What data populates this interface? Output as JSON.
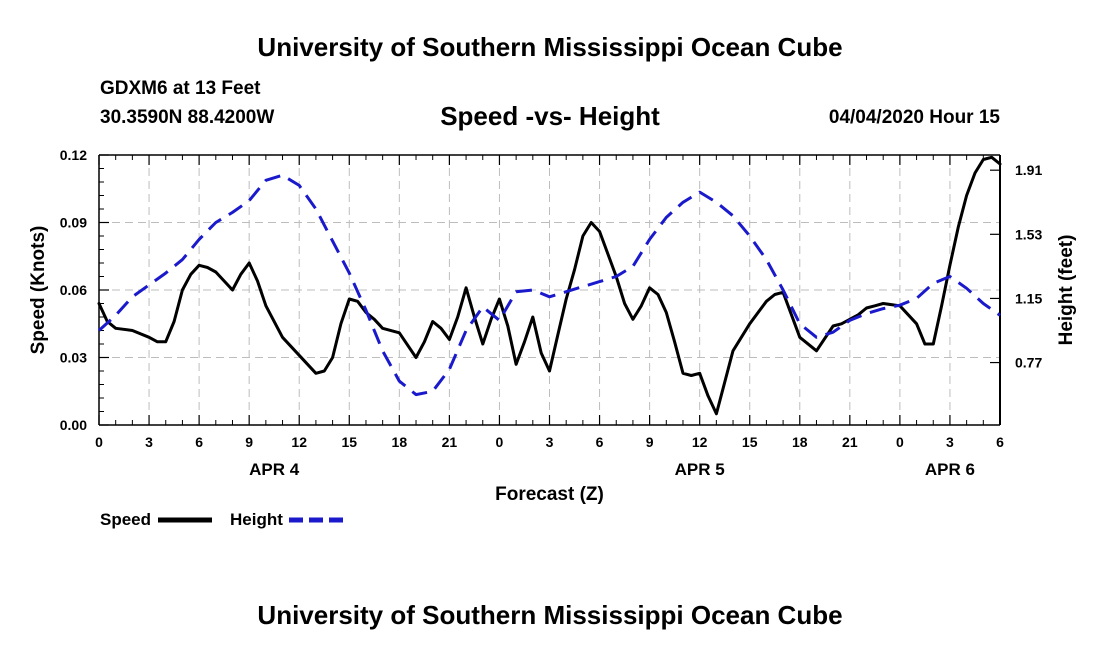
{
  "header": {
    "title": "University of Southern Mississippi Ocean Cube",
    "station": "GDXM6 at 13 Feet",
    "coords": "30.3590N 88.4200W",
    "valid_time": "04/04/2020 Hour 15"
  },
  "footer": {
    "title": "University of Southern Mississippi Ocean Cube"
  },
  "chart_data": {
    "type": "line",
    "title": "Speed -vs- Height",
    "xlabel": "Forecast (Z)",
    "ylabel_left": "Speed (Knots)",
    "ylabel_right": "Height (feet)",
    "x_range_hours": [
      0,
      54
    ],
    "x_ticks": [
      "0",
      "3",
      "6",
      "9",
      "12",
      "15",
      "18",
      "21",
      "0",
      "3",
      "6",
      "9",
      "12",
      "15",
      "18",
      "21",
      "0",
      "3",
      "6"
    ],
    "date_labels": [
      {
        "label": "APR 4",
        "hour": 10.5
      },
      {
        "label": "APR 5",
        "hour": 36
      },
      {
        "label": "APR 6",
        "hour": 51
      }
    ],
    "y_left": {
      "min": 0,
      "max": 0.12,
      "ticks": [
        "0.00",
        "0.03",
        "0.06",
        "0.09",
        "0.12"
      ]
    },
    "y_right": {
      "min": 0.4,
      "max": 2.0,
      "ticks": [
        "0.77",
        "1.15",
        "1.53",
        "1.91"
      ]
    },
    "grid": true,
    "legend": [
      {
        "name": "Speed",
        "color": "#000000",
        "style": "solid"
      },
      {
        "name": "Height",
        "color": "#1a1acc",
        "style": "dashed"
      }
    ],
    "series": [
      {
        "name": "Speed",
        "axis": "left",
        "color": "#000000",
        "x": [
          0,
          0.5,
          1,
          2,
          3,
          3.5,
          4,
          4.5,
          5,
          5.5,
          6,
          6.5,
          7,
          8,
          8.5,
          9,
          9.5,
          10,
          11,
          12,
          13,
          13.5,
          14,
          14.5,
          15,
          15.5,
          16,
          16.5,
          17,
          18,
          19,
          19.5,
          20,
          20.5,
          21,
          21.5,
          22,
          22.5,
          23,
          23.5,
          24,
          24.5,
          25,
          25.5,
          26,
          26.5,
          27,
          27.5,
          28,
          28.5,
          29,
          29.5,
          30,
          30.5,
          31,
          31.5,
          32,
          32.5,
          33,
          33.5,
          34,
          34.5,
          35,
          35.5,
          36,
          36.5,
          37,
          38,
          39,
          40,
          40.5,
          41,
          42,
          43,
          44,
          44.5,
          45,
          45.5,
          46,
          46.5,
          47,
          48,
          49,
          49.5,
          50,
          50.5,
          51,
          51.5,
          52,
          52.5,
          53,
          53.5,
          54
        ],
        "values": [
          0.054,
          0.046,
          0.043,
          0.042,
          0.039,
          0.037,
          0.037,
          0.046,
          0.06,
          0.067,
          0.071,
          0.07,
          0.068,
          0.06,
          0.067,
          0.072,
          0.064,
          0.053,
          0.039,
          0.031,
          0.023,
          0.024,
          0.03,
          0.045,
          0.056,
          0.055,
          0.05,
          0.047,
          0.043,
          0.041,
          0.03,
          0.037,
          0.046,
          0.043,
          0.038,
          0.048,
          0.061,
          0.048,
          0.036,
          0.047,
          0.056,
          0.044,
          0.027,
          0.037,
          0.048,
          0.032,
          0.024,
          0.04,
          0.056,
          0.069,
          0.084,
          0.09,
          0.086,
          0.076,
          0.066,
          0.054,
          0.047,
          0.053,
          0.061,
          0.058,
          0.05,
          0.037,
          0.023,
          0.022,
          0.023,
          0.013,
          0.005,
          0.033,
          0.045,
          0.055,
          0.058,
          0.059,
          0.039,
          0.033,
          0.044,
          0.045,
          0.047,
          0.049,
          0.052,
          0.053,
          0.054,
          0.053,
          0.045,
          0.036,
          0.036,
          0.053,
          0.071,
          0.088,
          0.102,
          0.112,
          0.118,
          0.119,
          0.116
        ]
      },
      {
        "name": "Height",
        "axis": "right",
        "color": "#1a1acc",
        "x": [
          0,
          1,
          2,
          3,
          4,
          5,
          6,
          7,
          8,
          9,
          10,
          11,
          12,
          13,
          14,
          15,
          16,
          17,
          18,
          19,
          20,
          21,
          22,
          23,
          24,
          25,
          26,
          27,
          28,
          29,
          30,
          31,
          32,
          33,
          34,
          35,
          36,
          37,
          38,
          39,
          40,
          41,
          42,
          43,
          44,
          45,
          46,
          47,
          48,
          49,
          50,
          51,
          52,
          53,
          54
        ],
        "values": [
          0.96,
          1.05,
          1.16,
          1.23,
          1.3,
          1.38,
          1.5,
          1.6,
          1.66,
          1.73,
          1.85,
          1.88,
          1.82,
          1.68,
          1.49,
          1.3,
          1.08,
          0.84,
          0.66,
          0.58,
          0.6,
          0.73,
          0.96,
          1.1,
          1.02,
          1.19,
          1.2,
          1.16,
          1.19,
          1.22,
          1.25,
          1.28,
          1.34,
          1.5,
          1.63,
          1.72,
          1.78,
          1.72,
          1.64,
          1.52,
          1.38,
          1.2,
          1.0,
          0.92,
          0.95,
          1.02,
          1.06,
          1.09,
          1.11,
          1.15,
          1.24,
          1.28,
          1.21,
          1.12,
          1.05
        ]
      }
    ]
  }
}
